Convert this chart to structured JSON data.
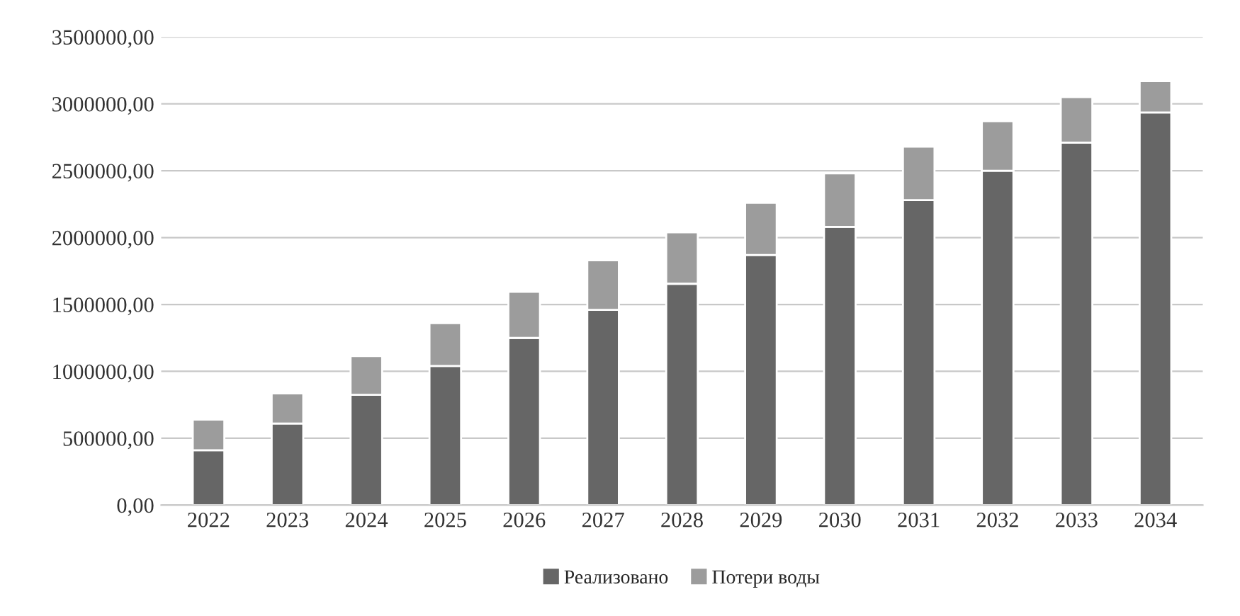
{
  "chart_data": {
    "type": "bar",
    "stacked": true,
    "categories": [
      "2022",
      "2023",
      "2024",
      "2025",
      "2026",
      "2027",
      "2028",
      "2029",
      "2030",
      "2031",
      "2032",
      "2033",
      "2034"
    ],
    "series": [
      {
        "name": "Реализовано",
        "color": "#666666",
        "values": [
          410000,
          610000,
          825000,
          1040000,
          1250000,
          1460000,
          1655000,
          1870000,
          2080000,
          2280000,
          2500000,
          2710000,
          2935000
        ]
      },
      {
        "name": "Потери воды",
        "color": "#9c9c9c",
        "values": [
          230000,
          225000,
          290000,
          320000,
          345000,
          370000,
          385000,
          390000,
          400000,
          400000,
          370000,
          340000,
          235000
        ]
      }
    ],
    "ylim": [
      0,
      3500000
    ],
    "yticks": [
      {
        "value": 0,
        "label": "0,00"
      },
      {
        "value": 500000,
        "label": "500000,00"
      },
      {
        "value": 1000000,
        "label": "1000000,00"
      },
      {
        "value": 1500000,
        "label": "1500000,00"
      },
      {
        "value": 2000000,
        "label": "2000000,00"
      },
      {
        "value": 2500000,
        "label": "2500000,00"
      },
      {
        "value": 3000000,
        "label": "3000000,00"
      },
      {
        "value": 3500000,
        "label": "3500000,00"
      }
    ],
    "grid": "y",
    "legend": "bottom"
  }
}
